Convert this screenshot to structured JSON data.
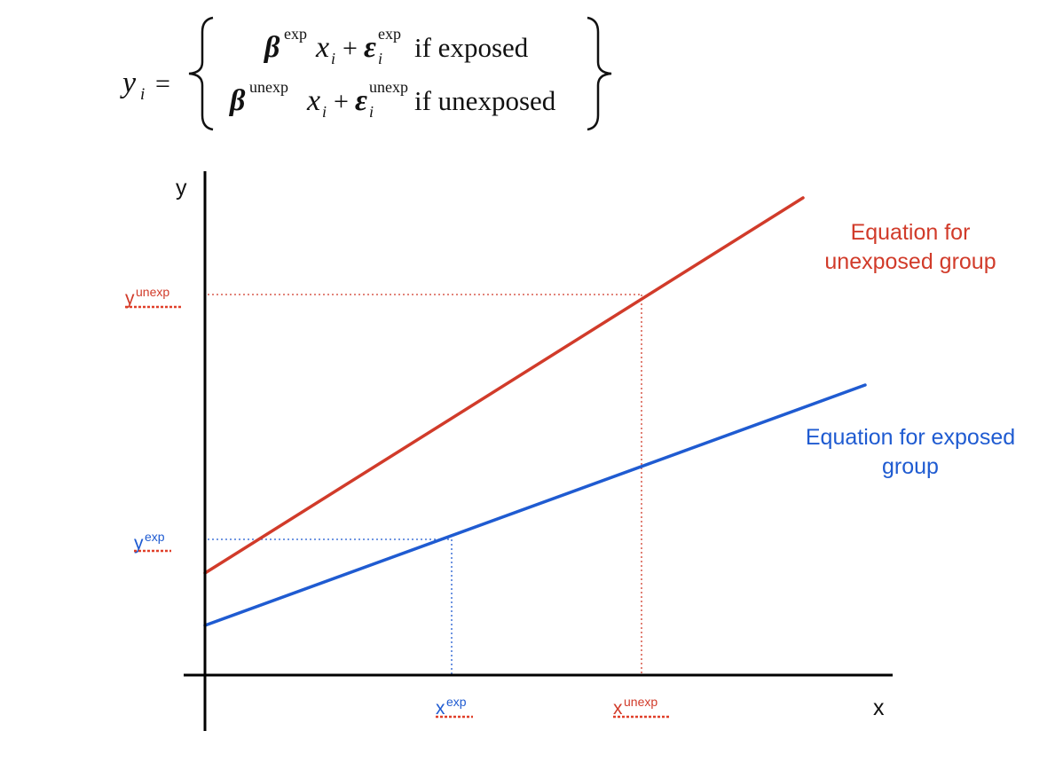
{
  "equation": {
    "lhs_var": "y",
    "lhs_sub": "i",
    "equals": "=",
    "row1": {
      "beta": "β",
      "beta_sup": "exp",
      "x": "x",
      "x_sub": "i",
      "plus": "+",
      "eps": "ε",
      "eps_sub": "i",
      "eps_sup": "exp",
      "condition": "if exposed"
    },
    "row2": {
      "beta": "β",
      "beta_sup": "unexp",
      "x": "x",
      "x_sub": "i",
      "plus": "+",
      "eps": "ε",
      "eps_sub": "i",
      "eps_sup": "unexp",
      "condition": "if unexposed"
    }
  },
  "axes": {
    "x_label": "x",
    "y_label": "y"
  },
  "lines": {
    "unexposed": {
      "label_line1": "Equation for",
      "label_line2": "unexposed group",
      "color": "#d13b2a"
    },
    "exposed": {
      "label_line1": "Equation for exposed",
      "label_line2": "group",
      "color": "#1f5bd1"
    }
  },
  "markers": {
    "y_unexp": {
      "base": "y",
      "sup": "unexp"
    },
    "y_exp": {
      "base": "y",
      "sup": "exp"
    },
    "x_exp": {
      "base": "x",
      "sup": "exp"
    },
    "x_unexp": {
      "base": "x",
      "sup": "unexp"
    }
  },
  "colors": {
    "axis": "#000000",
    "red": "#d13b2a",
    "blue": "#1f5bd1",
    "squiggle": "#e0402a"
  }
}
